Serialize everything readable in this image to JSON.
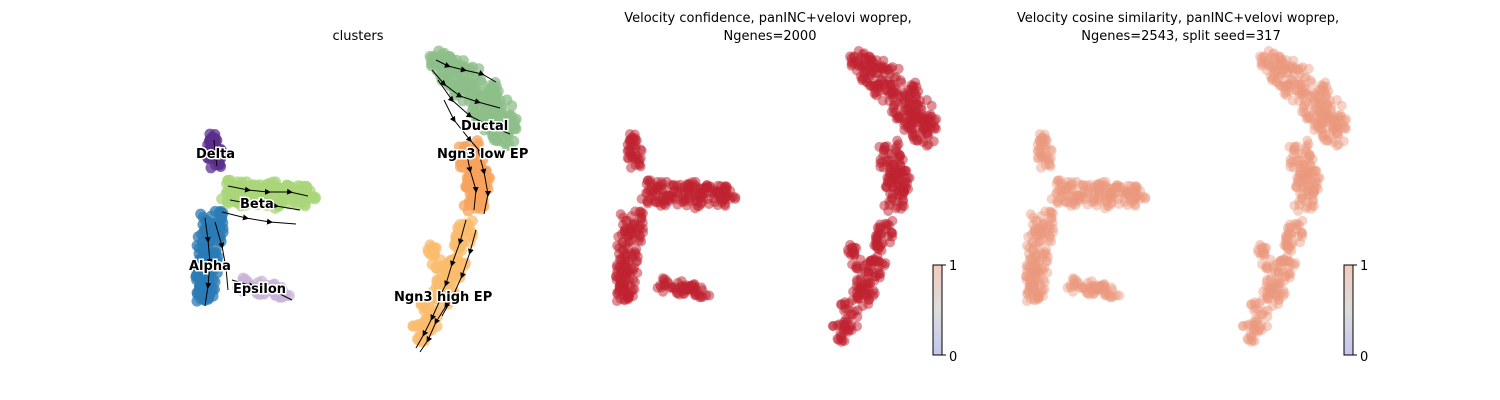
{
  "chart_data": [
    {
      "type": "scatter",
      "title": "clusters",
      "clusters": [
        {
          "name": "Delta",
          "color": "#5b2f8d"
        },
        {
          "name": "Beta",
          "color": "#aad679"
        },
        {
          "name": "Alpha",
          "color": "#2b7bb6"
        },
        {
          "name": "Epsilon",
          "color": "#c9b4d8"
        },
        {
          "name": "Ngn3 high EP",
          "color": "#fbbc6d"
        },
        {
          "name": "Ngn3 low EP",
          "color": "#f7a35c"
        },
        {
          "name": "Ductal",
          "color": "#8dbf8a"
        }
      ],
      "streamlines": true,
      "grid": false
    },
    {
      "type": "scatter",
      "title": "Velocity confidence, panINC+velovi woprep,",
      "subtitle": "Ngenes=2000",
      "colorbar": {
        "min": "0",
        "max": "1",
        "cmap": "coolwarm"
      },
      "point_color": "#c0222f",
      "grid": false
    },
    {
      "type": "scatter",
      "title": "Velocity cosine similarity, panINC+velovi woprep,",
      "subtitle": "Ngenes=2543, split seed=317",
      "colorbar": {
        "min": "0",
        "max": "1",
        "cmap": "coolwarm"
      },
      "point_color": "#ec9a7e",
      "grid": false
    }
  ]
}
